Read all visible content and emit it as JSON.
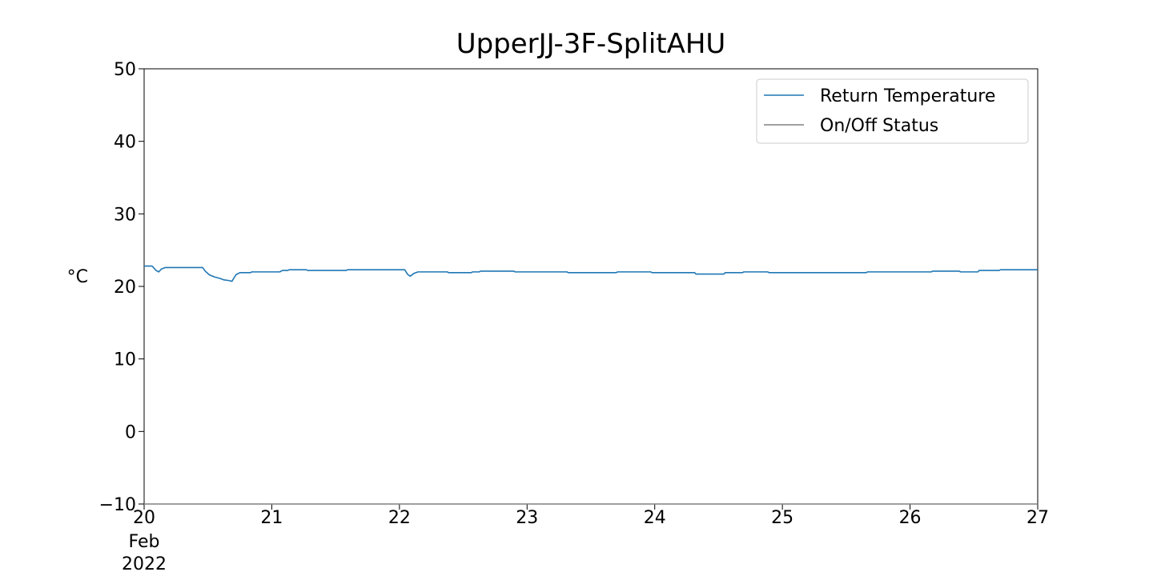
{
  "chart_data": {
    "type": "line",
    "title": "UpperJJ-3F-SplitAHU",
    "xlabel": "",
    "ylabel": "°C",
    "xlim": [
      "2022-02-20",
      "2022-02-27"
    ],
    "ylim": [
      -10,
      50
    ],
    "x_ticks": [
      {
        "label": "20",
        "date": "2022-02-20"
      },
      {
        "label": "21",
        "date": "2022-02-21"
      },
      {
        "label": "22",
        "date": "2022-02-22"
      },
      {
        "label": "23",
        "date": "2022-02-23"
      },
      {
        "label": "24",
        "date": "2022-02-24"
      },
      {
        "label": "25",
        "date": "2022-02-25"
      },
      {
        "label": "26",
        "date": "2022-02-26"
      },
      {
        "label": "27",
        "date": "2022-02-27"
      }
    ],
    "x_tick_sublabels": [
      "Feb",
      "2022"
    ],
    "y_ticks": [
      -10,
      0,
      10,
      20,
      30,
      40,
      50
    ],
    "y_tick_labels": [
      "−10",
      "0",
      "10",
      "20",
      "30",
      "40",
      "50"
    ],
    "legend": {
      "position": "top-right",
      "entries": [
        "Return Temperature",
        "On/Off Status"
      ]
    },
    "grid": false,
    "series": [
      {
        "name": "Return Temperature",
        "color": "#1f77b4",
        "points": [
          [
            "2022-02-20 00:00",
            22.8
          ],
          [
            "2022-02-20 01:30",
            22.8
          ],
          [
            "2022-02-20 02:15",
            22.2
          ],
          [
            "2022-02-20 02:45",
            22.0
          ],
          [
            "2022-02-20 03:15",
            22.4
          ],
          [
            "2022-02-20 04:00",
            22.6
          ],
          [
            "2022-02-20 08:00",
            22.6
          ],
          [
            "2022-02-20 11:00",
            22.6
          ],
          [
            "2022-02-20 11:30",
            22.1
          ],
          [
            "2022-02-20 12:15",
            21.6
          ],
          [
            "2022-02-20 13:15",
            21.3
          ],
          [
            "2022-02-20 14:15",
            21.1
          ],
          [
            "2022-02-20 15:00",
            20.9
          ],
          [
            "2022-02-20 16:00",
            20.8
          ],
          [
            "2022-02-20 16:30",
            20.7
          ],
          [
            "2022-02-20 17:15",
            21.6
          ],
          [
            "2022-02-20 18:00",
            21.9
          ],
          [
            "2022-02-20 20:00",
            21.9
          ],
          [
            "2022-02-20 20:15",
            22.0
          ],
          [
            "2022-02-21 00:00",
            22.0
          ],
          [
            "2022-02-21 01:30",
            22.0
          ],
          [
            "2022-02-21 02:00",
            22.2
          ],
          [
            "2022-02-21 03:00",
            22.2
          ],
          [
            "2022-02-21 03:15",
            22.3
          ],
          [
            "2022-02-21 06:30",
            22.3
          ],
          [
            "2022-02-21 06:45",
            22.2
          ],
          [
            "2022-02-21 14:00",
            22.2
          ],
          [
            "2022-02-21 14:15",
            22.3
          ],
          [
            "2022-02-22 01:00",
            22.3
          ],
          [
            "2022-02-22 01:30",
            21.7
          ],
          [
            "2022-02-22 02:00",
            21.4
          ],
          [
            "2022-02-22 02:45",
            21.8
          ],
          [
            "2022-02-22 03:30",
            22.0
          ],
          [
            "2022-02-22 09:00",
            22.0
          ],
          [
            "2022-02-22 09:15",
            21.9
          ],
          [
            "2022-02-22 13:30",
            21.9
          ],
          [
            "2022-02-22 13:45",
            22.0
          ],
          [
            "2022-02-22 15:00",
            22.0
          ],
          [
            "2022-02-22 15:15",
            22.1
          ],
          [
            "2022-02-22 21:30",
            22.1
          ],
          [
            "2022-02-22 21:45",
            22.0
          ],
          [
            "2022-02-23 07:30",
            22.0
          ],
          [
            "2022-02-23 07:45",
            21.9
          ],
          [
            "2022-02-23 16:45",
            21.9
          ],
          [
            "2022-02-23 17:00",
            22.0
          ],
          [
            "2022-02-23 23:15",
            22.0
          ],
          [
            "2022-02-23 23:30",
            21.9
          ],
          [
            "2022-02-24 07:30",
            21.9
          ],
          [
            "2022-02-24 07:45",
            21.7
          ],
          [
            "2022-02-24 13:00",
            21.7
          ],
          [
            "2022-02-24 13:15",
            21.9
          ],
          [
            "2022-02-24 16:30",
            21.9
          ],
          [
            "2022-02-24 16:45",
            22.0
          ],
          [
            "2022-02-24 21:15",
            22.0
          ],
          [
            "2022-02-24 21:30",
            21.9
          ],
          [
            "2022-02-25 15:45",
            21.9
          ],
          [
            "2022-02-25 16:00",
            22.0
          ],
          [
            "2022-02-26 04:00",
            22.0
          ],
          [
            "2022-02-26 04:15",
            22.1
          ],
          [
            "2022-02-26 09:15",
            22.1
          ],
          [
            "2022-02-26 09:30",
            22.0
          ],
          [
            "2022-02-26 12:45",
            22.0
          ],
          [
            "2022-02-26 13:00",
            22.2
          ],
          [
            "2022-02-26 16:45",
            22.2
          ],
          [
            "2022-02-26 17:00",
            22.3
          ],
          [
            "2022-02-27 00:00",
            22.3
          ]
        ]
      },
      {
        "name": "On/Off Status",
        "color": "#808080",
        "points": [
          [
            "2022-02-20 00:00",
            -10
          ],
          [
            "2022-02-27 00:00",
            -10
          ]
        ]
      }
    ]
  }
}
